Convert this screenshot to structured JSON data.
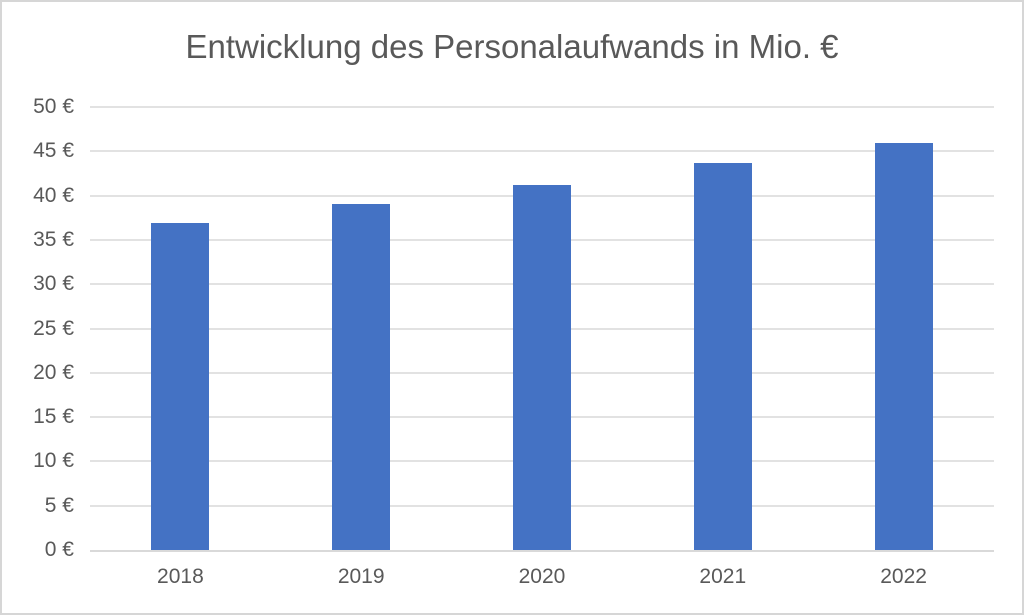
{
  "chart_data": {
    "type": "bar",
    "title": "Entwicklung des Personalaufwands in Mio. €",
    "categories": [
      "2018",
      "2019",
      "2020",
      "2021",
      "2022"
    ],
    "values": [
      36.9,
      39.0,
      41.2,
      43.7,
      45.9
    ],
    "y_tick_values": [
      0,
      5,
      10,
      15,
      20,
      25,
      30,
      35,
      40,
      45,
      50
    ],
    "y_tick_labels": [
      "0 €",
      "5 €",
      "10 €",
      "15 €",
      "20 €",
      "25 €",
      "30 €",
      "35 €",
      "40 €",
      "45 €",
      "50 €"
    ],
    "ylim": [
      0,
      50
    ],
    "xlabel": "",
    "ylabel": "",
    "legend": "none",
    "grid": "horizontal",
    "colors": {
      "bar_fill": "#4472c4",
      "gridline": "#e2e2e2",
      "axis_line": "#d9d9d9",
      "text": "#595959",
      "frame_border": "#d6d6d6",
      "background": "#ffffff"
    }
  }
}
